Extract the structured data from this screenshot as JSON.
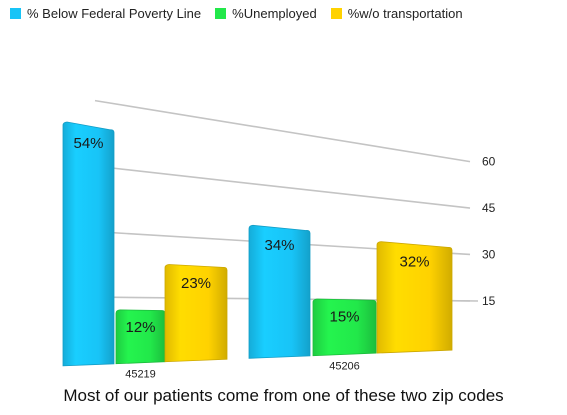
{
  "chart_data": {
    "type": "bar",
    "categories": [
      "45219",
      "45206"
    ],
    "series": [
      {
        "name": "% Below Federal Poverty Line",
        "color": "#18c4f7",
        "values": [
          54,
          34
        ],
        "labels": [
          "54%",
          "34%"
        ]
      },
      {
        "name": "%Unemployed",
        "color": "#22e84a",
        "values": [
          12,
          15
        ],
        "labels": [
          "12%",
          "15%"
        ]
      },
      {
        "name": "%w/o transportation",
        "color": "#ffd200",
        "values": [
          23,
          32
        ],
        "labels": [
          "23%",
          "32%"
        ]
      }
    ],
    "yticks": [
      "15",
      "30",
      "45",
      "60"
    ],
    "ylim": [
      0,
      60
    ],
    "grid": true,
    "legend": "top",
    "caption": "Most of our patients come from one of these two zip codes"
  }
}
